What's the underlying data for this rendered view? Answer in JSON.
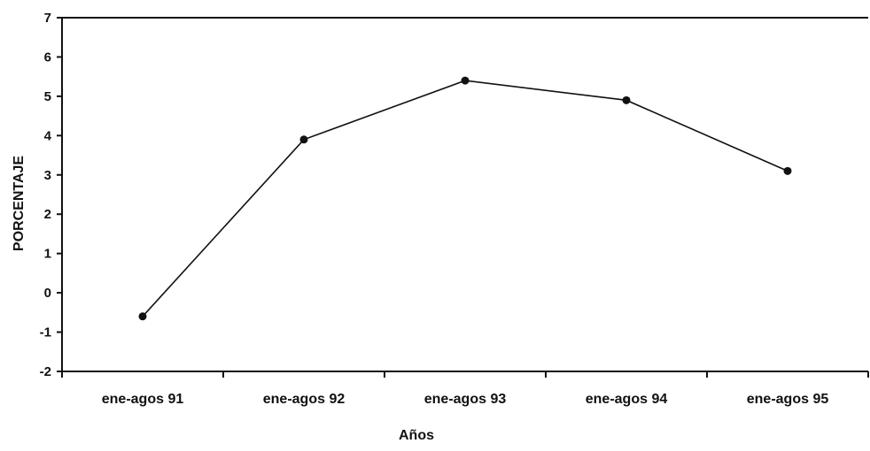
{
  "chart_data": {
    "type": "line",
    "title": "",
    "xlabel": "Años",
    "ylabel": "PORCENTAJE",
    "categories": [
      "ene-agos 91",
      "ene-agos 92",
      "ene-agos 93",
      "ene-agos 94",
      "ene-agos 95"
    ],
    "series": [
      {
        "values": [
          -0.6,
          3.9,
          5.4,
          4.9,
          3.1
        ]
      }
    ],
    "ylim": [
      -2,
      7
    ],
    "yticks": [
      "7",
      "6",
      "5",
      "4",
      "3",
      "2",
      "1",
      "0",
      "-1",
      "-2"
    ],
    "grid": false,
    "legend": "none",
    "colors": {
      "line": "#111111",
      "axis": "#111111",
      "background": "#ffffff"
    }
  }
}
